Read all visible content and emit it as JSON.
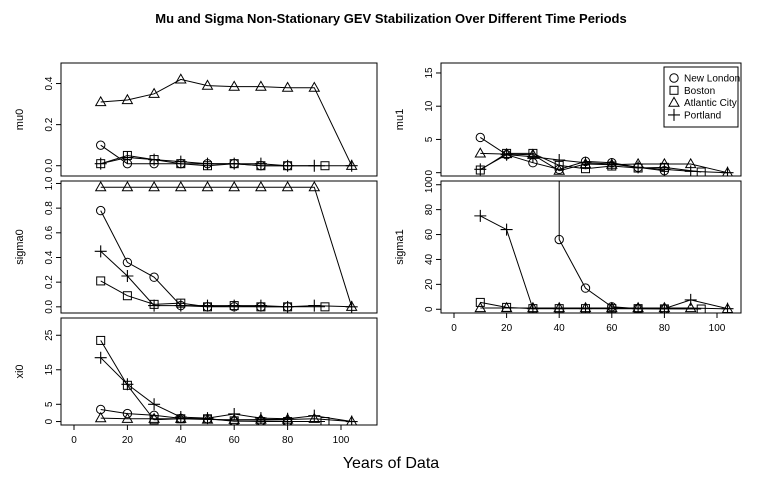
{
  "figure": {
    "title": "Mu and Sigma Non-Stationary GEV Stabilization Over Different Time Periods",
    "xlabel": "Years of Data"
  },
  "legend": {
    "position": "top-right of mu1 panel",
    "entries": [
      {
        "name": "New London",
        "marker": "circle"
      },
      {
        "name": "Boston",
        "marker": "square"
      },
      {
        "name": "Atlantic City",
        "marker": "triangle"
      },
      {
        "name": "Portland",
        "marker": "plus"
      }
    ]
  },
  "chart_data": [
    {
      "type": "line",
      "panel": "mu0",
      "ylabel": "mu0",
      "xlim": [
        0,
        110
      ],
      "ylim": [
        -0.05,
        0.5
      ],
      "yticks": [
        "0.0",
        "0.2",
        "0.4"
      ],
      "xticks": [],
      "series": [
        {
          "name": "New London",
          "x": [
            10,
            20,
            30,
            40,
            50,
            60,
            70,
            80
          ],
          "y": [
            0.1,
            0.01,
            0.01,
            0.01,
            0.01,
            0.01,
            0.0,
            0.0
          ]
        },
        {
          "name": "Boston",
          "x": [
            10,
            20,
            30,
            40,
            50,
            60,
            70,
            80,
            94
          ],
          "y": [
            0.01,
            0.05,
            0.03,
            0.01,
            0.0,
            0.01,
            0.0,
            0.0,
            0.0
          ]
        },
        {
          "name": "Atlantic City",
          "x": [
            10,
            20,
            30,
            40,
            50,
            60,
            70,
            80,
            90,
            104
          ],
          "y": [
            0.31,
            0.32,
            0.35,
            0.42,
            0.39,
            0.385,
            0.385,
            0.38,
            0.38,
            0.0
          ]
        },
        {
          "name": "Portland",
          "x": [
            10,
            20,
            30,
            40,
            50,
            60,
            70,
            80,
            90,
            104
          ],
          "y": [
            0.01,
            0.04,
            0.03,
            0.02,
            0.01,
            0.01,
            0.01,
            0.0,
            0.0,
            0.0
          ]
        }
      ]
    },
    {
      "type": "line",
      "panel": "sigma0",
      "ylabel": "sigma0",
      "xlim": [
        0,
        110
      ],
      "ylim": [
        -0.05,
        1.02
      ],
      "yticks": [
        "0.0",
        "0.2",
        "0.4",
        "0.6",
        "0.8",
        "1.0"
      ],
      "xticks": [],
      "series": [
        {
          "name": "New London",
          "x": [
            10,
            20,
            30,
            40,
            50,
            60,
            70,
            80
          ],
          "y": [
            0.78,
            0.36,
            0.24,
            0.01,
            0.0,
            0.0,
            0.0,
            0.0
          ]
        },
        {
          "name": "Boston",
          "x": [
            10,
            20,
            30,
            40,
            50,
            60,
            70,
            80,
            94
          ],
          "y": [
            0.21,
            0.09,
            0.02,
            0.03,
            0.0,
            0.01,
            0.0,
            0.0,
            0.0
          ]
        },
        {
          "name": "Atlantic City",
          "x": [
            10,
            20,
            30,
            40,
            50,
            60,
            70,
            80,
            90,
            104
          ],
          "y": [
            0.97,
            0.97,
            0.97,
            0.97,
            0.97,
            0.97,
            0.97,
            0.97,
            0.97,
            0.0
          ]
        },
        {
          "name": "Portland",
          "x": [
            10,
            20,
            30,
            40,
            50,
            60,
            70,
            80,
            90,
            104
          ],
          "y": [
            0.45,
            0.25,
            0.01,
            0.01,
            0.01,
            0.01,
            0.01,
            0.0,
            0.01,
            0.0
          ]
        }
      ]
    },
    {
      "type": "line",
      "panel": "xi0",
      "ylabel": "xi0",
      "xlim": [
        0,
        110
      ],
      "ylim": [
        -1,
        30
      ],
      "yticks": [
        "0",
        "5",
        "15",
        "25"
      ],
      "ytick_values": [
        0,
        5,
        15,
        25
      ],
      "xticks": [
        "0",
        "20",
        "40",
        "60",
        "80",
        "100"
      ],
      "series": [
        {
          "name": "New London",
          "x": [
            10,
            20,
            30,
            40,
            50,
            60,
            70,
            80
          ],
          "y": [
            3.5,
            2.3,
            1.8,
            0.9,
            0.8,
            0.1,
            0.2,
            0.1
          ]
        },
        {
          "name": "Boston",
          "x": [
            10,
            20,
            30,
            40,
            50,
            60,
            70,
            80,
            94
          ],
          "y": [
            23.5,
            10.5,
            0.5,
            0.8,
            0.8,
            0.2,
            0.0,
            0.0,
            0.0
          ]
        },
        {
          "name": "Atlantic City",
          "x": [
            10,
            20,
            30,
            40,
            50,
            60,
            70,
            80,
            90,
            104
          ],
          "y": [
            1.0,
            0.8,
            0.8,
            0.8,
            0.6,
            0.5,
            0.6,
            0.6,
            0.8,
            0.0
          ]
        },
        {
          "name": "Portland",
          "x": [
            10,
            20,
            30,
            40,
            50,
            60,
            70,
            80,
            90,
            104
          ],
          "y": [
            18.5,
            10.8,
            5.0,
            1.3,
            1.0,
            2.2,
            1.0,
            0.8,
            1.7,
            0.0
          ]
        }
      ]
    },
    {
      "type": "line",
      "panel": "mu1",
      "ylabel": "mu1",
      "xlim": [
        0,
        110
      ],
      "ylim": [
        -0.5,
        16.5
      ],
      "yticks": [
        "0",
        "5",
        "10",
        "15"
      ],
      "ytick_values": [
        0,
        5,
        10,
        15
      ],
      "xticks": [],
      "series": [
        {
          "name": "New London",
          "x": [
            10,
            20,
            30,
            40,
            50,
            60,
            70,
            80
          ],
          "y": [
            5.3,
            2.7,
            1.5,
            0.5,
            1.7,
            1.5,
            0.8,
            0.3
          ]
        },
        {
          "name": "Boston",
          "x": [
            10,
            20,
            30,
            40,
            50,
            60,
            70,
            80,
            94
          ],
          "y": [
            0.4,
            2.9,
            2.9,
            1.1,
            0.6,
            1.0,
            0.7,
            0.8,
            0.1
          ]
        },
        {
          "name": "Atlantic City",
          "x": [
            10,
            20,
            30,
            40,
            50,
            60,
            70,
            80,
            90,
            104
          ],
          "y": [
            2.9,
            2.8,
            2.7,
            0.3,
            1.3,
            1.2,
            1.3,
            1.3,
            1.3,
            0.0
          ]
        },
        {
          "name": "Portland",
          "x": [
            10,
            20,
            30,
            40,
            50,
            60,
            70,
            80,
            90,
            104
          ],
          "y": [
            0.5,
            2.7,
            2.4,
            1.9,
            1.5,
            1.3,
            0.8,
            0.5,
            0.2,
            0.0
          ]
        }
      ]
    },
    {
      "type": "line",
      "panel": "sigma1",
      "ylabel": "sigma1",
      "xlim": [
        0,
        110
      ],
      "ylim": [
        -3,
        103
      ],
      "yticks": [
        "0",
        "20",
        "40",
        "60",
        "80",
        "100"
      ],
      "ytick_values": [
        0,
        20,
        40,
        60,
        80,
        100
      ],
      "xticks": [
        "0",
        "20",
        "40",
        "60",
        "80",
        "100"
      ],
      "series": [
        {
          "name": "New London",
          "x": [
            40,
            40,
            50,
            60,
            70,
            80
          ],
          "y": [
            103,
            56,
            17,
            2,
            0.5,
            0.3
          ],
          "marker_from": 1
        },
        {
          "name": "Boston",
          "x": [
            10,
            20,
            30,
            40,
            50,
            60,
            70,
            80,
            94
          ],
          "y": [
            5.5,
            1.5,
            0.5,
            0.5,
            0.5,
            0.5,
            0.5,
            0.3,
            0.2
          ]
        },
        {
          "name": "Atlantic City",
          "x": [
            10,
            20,
            30,
            40,
            50,
            60,
            70,
            80,
            90,
            104
          ],
          "y": [
            1.0,
            1.0,
            1.0,
            1.0,
            1.0,
            1.0,
            1.0,
            1.0,
            1.0,
            0.3
          ]
        },
        {
          "name": "Portland",
          "x": [
            10,
            20,
            30,
            40,
            50,
            60,
            70,
            80,
            90,
            104
          ],
          "y": [
            75,
            64,
            0.5,
            0.5,
            0.5,
            0.5,
            0.5,
            0.5,
            7.5,
            0.5
          ]
        }
      ]
    }
  ]
}
